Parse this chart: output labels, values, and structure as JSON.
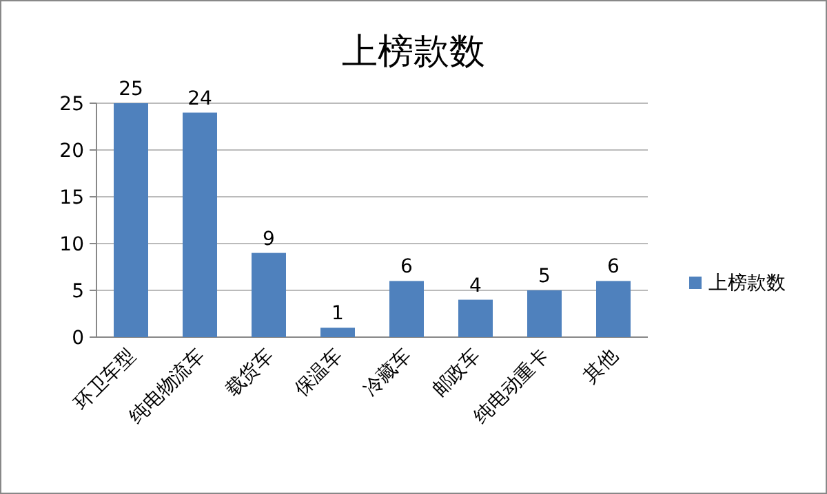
{
  "chart_data": {
    "type": "bar",
    "title": "上榜款数",
    "categories": [
      "环卫车型",
      "纯电物流车",
      "载货车",
      "保温车",
      "冷藏车",
      "邮政车",
      "纯电动重卡",
      "其他"
    ],
    "series": [
      {
        "name": "上榜款数",
        "color": "#4f81bd",
        "values": [
          25,
          24,
          9,
          1,
          6,
          4,
          5,
          6
        ]
      }
    ],
    "ylim": [
      0,
      25
    ],
    "yticks": [
      0,
      5,
      10,
      15,
      20,
      25
    ],
    "grid": "y",
    "legend": "right",
    "data_labels": true
  }
}
